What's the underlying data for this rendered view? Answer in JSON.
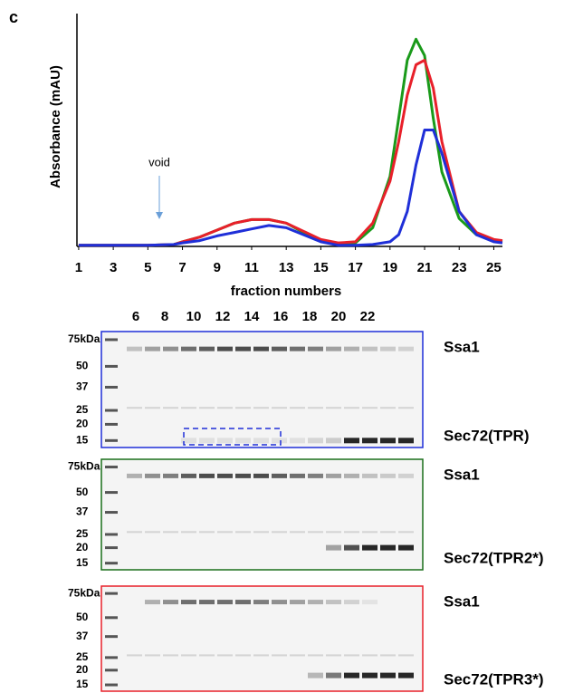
{
  "panel_label": "c",
  "chart_data": {
    "type": "line",
    "y_label": "Absorbance (mAU)",
    "x_label": "fraction numbers",
    "annotation": "void",
    "x": [
      1,
      5,
      6.5,
      7,
      8,
      9,
      10,
      11,
      12,
      13,
      14,
      15,
      16,
      17,
      18,
      19,
      19.5,
      20,
      20.5,
      21,
      21.5,
      22,
      23,
      24,
      25,
      25.5
    ],
    "series": [
      {
        "color": "#1a9a1a",
        "values": [
          0.5,
          0.5,
          0.8,
          2,
          4,
          7,
          10,
          11.5,
          11.5,
          10,
          6,
          2.5,
          1,
          1.5,
          8,
          30,
          55,
          80,
          89,
          82,
          55,
          32,
          12,
          5,
          2.5,
          2
        ]
      },
      {
        "color": "#e8202a",
        "values": [
          0.5,
          0.5,
          0.8,
          2,
          4,
          7,
          10,
          11.5,
          11.5,
          10,
          6.5,
          3,
          1.5,
          2,
          10,
          28,
          45,
          65,
          78,
          80,
          68,
          45,
          15,
          6,
          3,
          2.5
        ]
      },
      {
        "color": "#1f2fd8",
        "values": [
          0.5,
          0.5,
          0.8,
          1.5,
          2.5,
          4.5,
          6,
          7.5,
          9,
          8,
          5,
          2,
          0.5,
          0.5,
          0.8,
          2,
          5,
          15,
          35,
          50,
          50,
          40,
          15,
          5,
          2,
          1.5
        ]
      }
    ],
    "xlim": [
      0.9,
      25.5
    ],
    "ylim": [
      0,
      100
    ],
    "xticks": [
      1,
      3,
      5,
      7,
      9,
      11,
      13,
      15,
      17,
      19,
      21,
      23,
      25
    ]
  },
  "gel_panel": {
    "lane_numbers": [
      "6",
      "8",
      "10",
      "12",
      "14",
      "16",
      "18",
      "20",
      "22"
    ],
    "gels": [
      {
        "color": "#1f2fd8",
        "markers": [
          "75kDa",
          "50",
          "37",
          "25",
          "20",
          "15"
        ],
        "labels": [
          "Ssa1",
          "Sec72(TPR)"
        ]
      },
      {
        "color": "#1a6e1a",
        "markers": [
          "75kDa",
          "50",
          "37",
          "25",
          "20",
          "15"
        ],
        "labels": [
          "Ssa1",
          "Sec72(TPR2*)"
        ]
      },
      {
        "color": "#e8202a",
        "markers": [
          "75kDa",
          "50",
          "37",
          "25",
          "20",
          "15"
        ],
        "labels": [
          "Ssa1",
          "Sec72(TPR3*)"
        ]
      }
    ]
  }
}
